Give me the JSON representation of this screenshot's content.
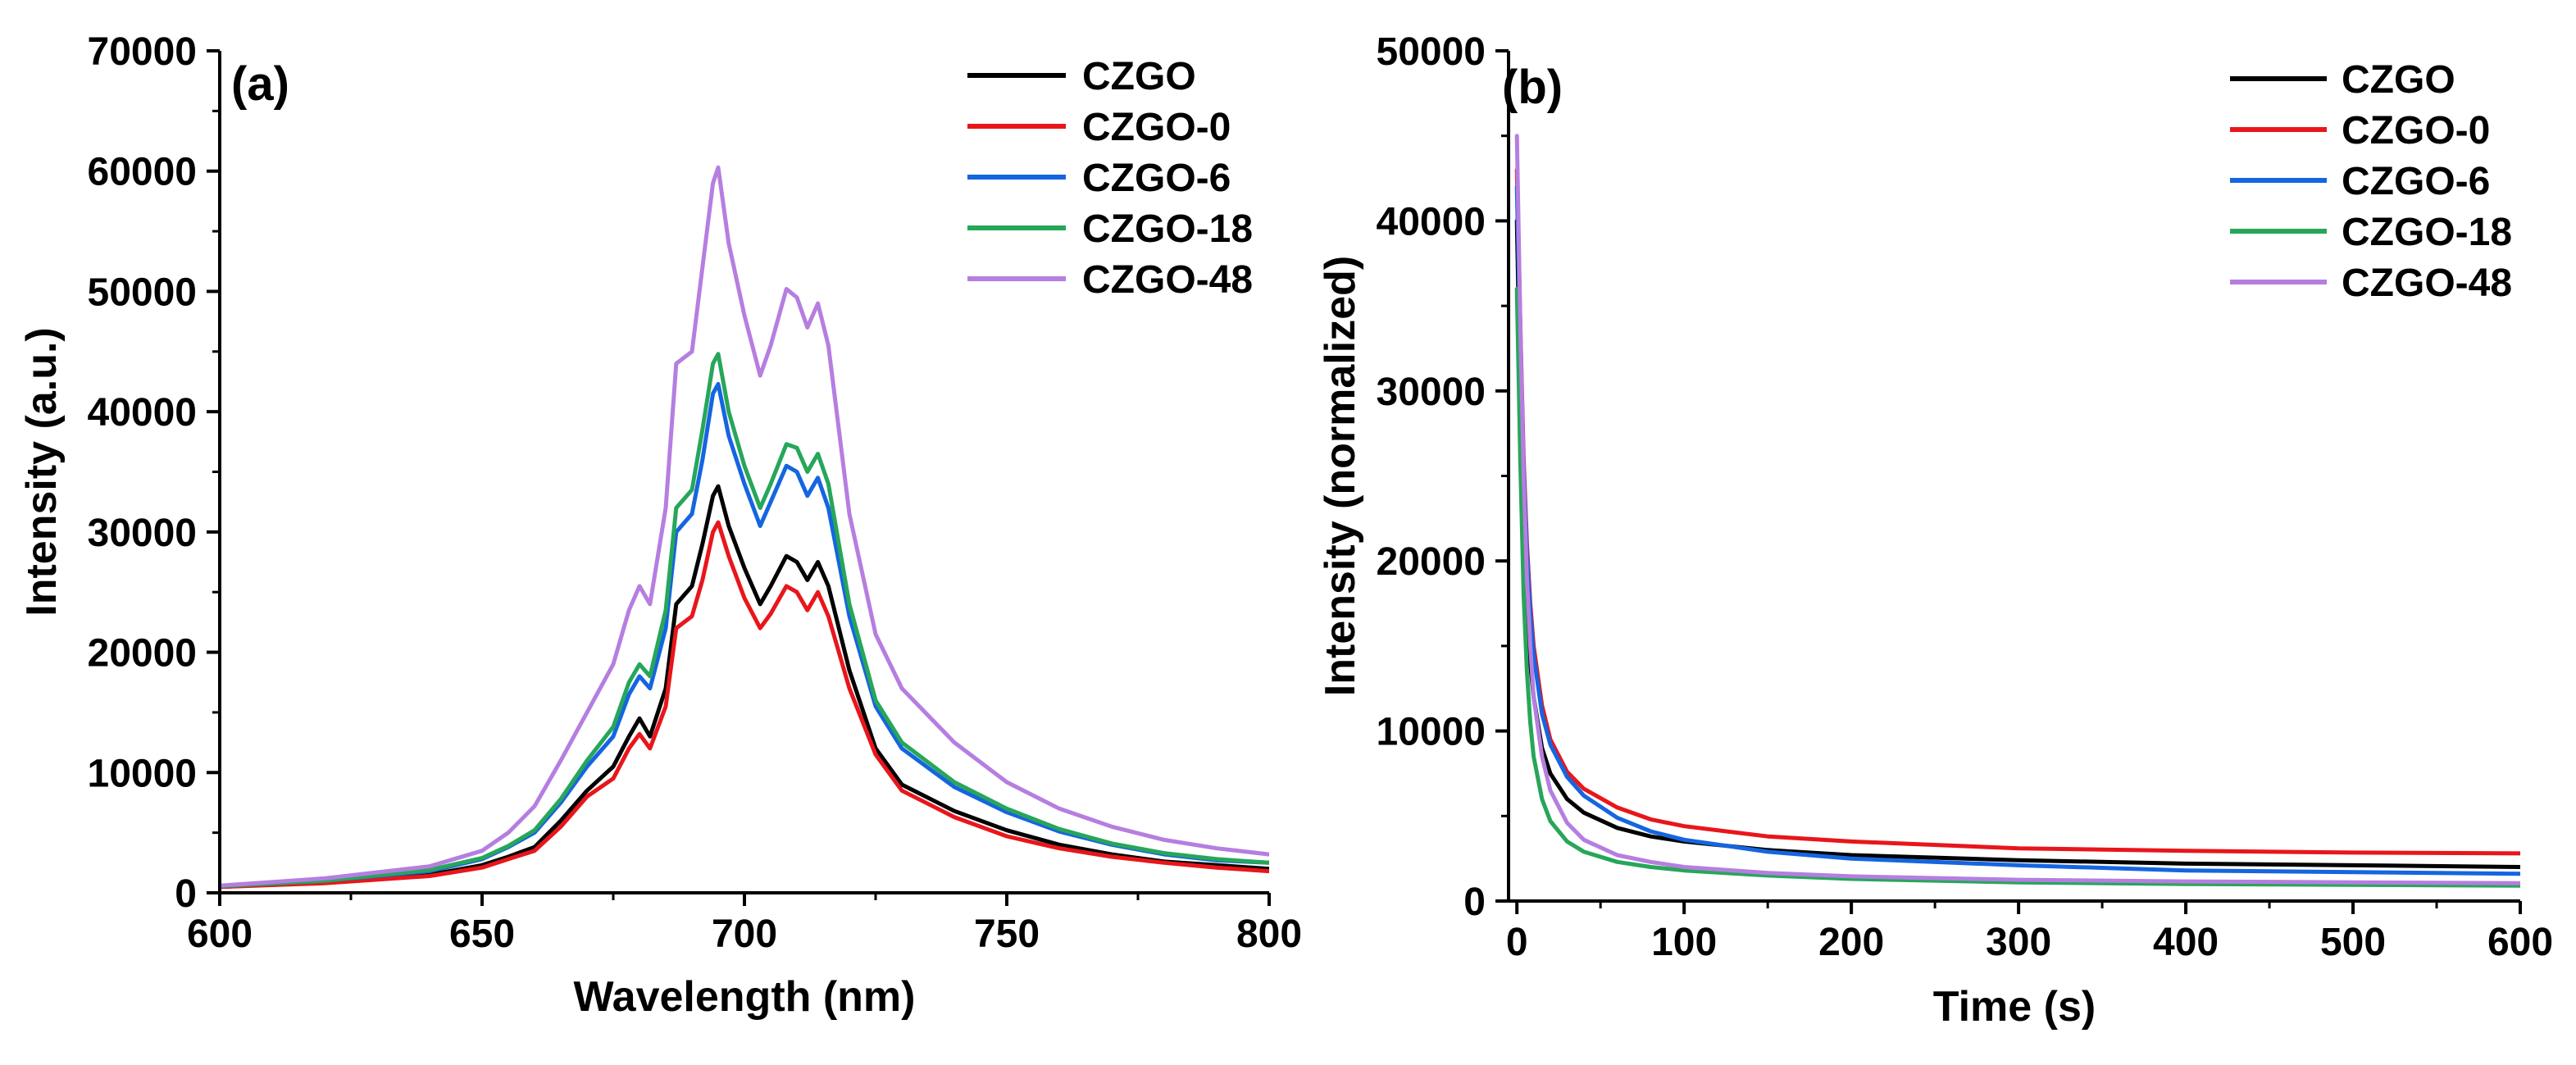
{
  "chart_data": [
    {
      "id": "a",
      "type": "line",
      "panel_label": "(a)",
      "xlabel": "Wavelength (nm)",
      "ylabel": "Intensity (a.u.)",
      "xlim": [
        600,
        800
      ],
      "ylim": [
        0,
        70000
      ],
      "xticks": [
        600,
        650,
        700,
        750,
        800
      ],
      "yticks": [
        0,
        10000,
        20000,
        30000,
        40000,
        50000,
        60000,
        70000
      ],
      "legend_position": "top-right",
      "series": [
        {
          "name": "CZGO",
          "color": "#000000",
          "x": [
            600,
            620,
            640,
            650,
            655,
            660,
            665,
            670,
            675,
            678,
            680,
            682,
            685,
            687,
            690,
            692,
            694,
            695,
            697,
            700,
            703,
            705,
            708,
            710,
            712,
            714,
            716,
            718,
            720,
            725,
            730,
            740,
            750,
            760,
            770,
            780,
            790,
            800
          ],
          "y": [
            500,
            900,
            1500,
            2300,
            3000,
            3800,
            6000,
            8500,
            10500,
            13000,
            14500,
            13000,
            17000,
            24000,
            25500,
            29000,
            33000,
            33800,
            30500,
            27000,
            24000,
            25500,
            28000,
            27500,
            26000,
            27500,
            25500,
            22000,
            18500,
            12000,
            9000,
            6800,
            5200,
            4000,
            3200,
            2600,
            2300,
            2000
          ]
        },
        {
          "name": "CZGO-0",
          "color": "#e8161b",
          "x": [
            600,
            620,
            640,
            650,
            655,
            660,
            665,
            670,
            675,
            678,
            680,
            682,
            685,
            687,
            690,
            692,
            694,
            695,
            697,
            700,
            703,
            705,
            708,
            710,
            712,
            714,
            716,
            718,
            720,
            725,
            730,
            740,
            750,
            760,
            770,
            780,
            790,
            800
          ],
          "y": [
            500,
            800,
            1400,
            2100,
            2800,
            3500,
            5500,
            8000,
            9500,
            12000,
            13200,
            12000,
            15500,
            22000,
            23000,
            26000,
            30000,
            30800,
            28000,
            24500,
            22000,
            23200,
            25500,
            25000,
            23500,
            25000,
            23000,
            20000,
            17000,
            11500,
            8500,
            6300,
            4700,
            3700,
            3000,
            2500,
            2100,
            1800
          ]
        },
        {
          "name": "CZGO-6",
          "color": "#1565e0",
          "x": [
            600,
            620,
            640,
            650,
            655,
            660,
            665,
            670,
            675,
            678,
            680,
            682,
            685,
            687,
            690,
            692,
            694,
            695,
            697,
            700,
            703,
            705,
            708,
            710,
            712,
            714,
            716,
            718,
            720,
            725,
            730,
            740,
            750,
            760,
            770,
            780,
            790,
            800
          ],
          "y": [
            550,
            1000,
            1800,
            2800,
            3800,
            5000,
            7500,
            10500,
            13000,
            16500,
            18000,
            17000,
            22000,
            30000,
            31500,
            36000,
            41500,
            42300,
            38000,
            34000,
            30500,
            32500,
            35500,
            35000,
            33000,
            34500,
            32000,
            27500,
            23000,
            15500,
            12000,
            8800,
            6700,
            5100,
            4000,
            3200,
            2700,
            2500
          ]
        },
        {
          "name": "CZGO-18",
          "color": "#27a65a",
          "x": [
            600,
            620,
            640,
            650,
            655,
            660,
            665,
            670,
            675,
            678,
            680,
            682,
            685,
            687,
            690,
            692,
            694,
            695,
            697,
            700,
            703,
            705,
            708,
            710,
            712,
            714,
            716,
            718,
            720,
            725,
            730,
            740,
            750,
            760,
            770,
            780,
            790,
            800
          ],
          "y": [
            550,
            1000,
            1900,
            2900,
            3900,
            5200,
            7800,
            11000,
            13800,
            17500,
            19000,
            18000,
            23500,
            32000,
            33500,
            38500,
            44000,
            44800,
            40000,
            35500,
            32000,
            34000,
            37300,
            37000,
            35000,
            36500,
            34000,
            29000,
            24000,
            16000,
            12500,
            9200,
            7000,
            5300,
            4100,
            3300,
            2800,
            2500
          ]
        },
        {
          "name": "CZGO-48",
          "color": "#b57ee0",
          "x": [
            600,
            620,
            640,
            650,
            655,
            660,
            665,
            670,
            675,
            678,
            680,
            682,
            685,
            687,
            690,
            692,
            694,
            695,
            697,
            700,
            703,
            705,
            708,
            710,
            712,
            714,
            716,
            718,
            720,
            725,
            730,
            740,
            750,
            760,
            770,
            780,
            790,
            800
          ],
          "y": [
            600,
            1200,
            2200,
            3500,
            5000,
            7200,
            11000,
            15000,
            19000,
            23500,
            25500,
            24000,
            32000,
            44000,
            45000,
            52000,
            59000,
            60300,
            54000,
            48000,
            43000,
            45500,
            50200,
            49500,
            47000,
            49000,
            45500,
            38500,
            31500,
            21500,
            17000,
            12500,
            9200,
            7000,
            5500,
            4400,
            3700,
            3200
          ]
        }
      ]
    },
    {
      "id": "b",
      "type": "line",
      "panel_label": "(b)",
      "xlabel": "Time (s)",
      "ylabel": "Intensity (normalized)",
      "xlim": [
        -5,
        600
      ],
      "ylim": [
        0,
        50000
      ],
      "xticks": [
        0,
        100,
        200,
        300,
        400,
        500,
        600
      ],
      "yticks": [
        0,
        10000,
        20000,
        30000,
        40000,
        50000
      ],
      "legend_position": "top-right",
      "series": [
        {
          "name": "CZGO",
          "color": "#000000",
          "x": [
            0,
            2,
            4,
            6,
            8,
            10,
            15,
            20,
            30,
            40,
            60,
            80,
            100,
            150,
            200,
            300,
            400,
            500,
            600
          ],
          "y": [
            40000,
            30000,
            22000,
            17000,
            14000,
            12000,
            9000,
            7500,
            6000,
            5200,
            4300,
            3800,
            3500,
            3000,
            2700,
            2400,
            2200,
            2100,
            2000
          ]
        },
        {
          "name": "CZGO-0",
          "color": "#e8161b",
          "x": [
            0,
            2,
            4,
            6,
            8,
            10,
            15,
            20,
            30,
            40,
            60,
            80,
            100,
            150,
            200,
            300,
            400,
            500,
            600
          ],
          "y": [
            43000,
            34000,
            26000,
            21000,
            17500,
            15000,
            11500,
            9500,
            7600,
            6600,
            5500,
            4800,
            4400,
            3800,
            3500,
            3100,
            2950,
            2850,
            2800
          ]
        },
        {
          "name": "CZGO-6",
          "color": "#1565e0",
          "x": [
            0,
            2,
            4,
            6,
            8,
            10,
            15,
            20,
            30,
            40,
            60,
            80,
            100,
            150,
            200,
            300,
            400,
            500,
            600
          ],
          "y": [
            42000,
            33000,
            25500,
            20500,
            17000,
            14500,
            11000,
            9200,
            7300,
            6200,
            4900,
            4100,
            3600,
            2900,
            2500,
            2100,
            1800,
            1700,
            1600
          ]
        },
        {
          "name": "CZGO-18",
          "color": "#27a65a",
          "x": [
            0,
            2,
            4,
            6,
            8,
            10,
            15,
            20,
            30,
            40,
            60,
            80,
            100,
            150,
            200,
            300,
            400,
            500,
            600
          ],
          "y": [
            36000,
            26000,
            18000,
            13500,
            10500,
            8500,
            6000,
            4700,
            3500,
            2900,
            2300,
            2000,
            1800,
            1500,
            1300,
            1100,
            1000,
            950,
            900
          ]
        },
        {
          "name": "CZGO-48",
          "color": "#b57ee0",
          "x": [
            0,
            2,
            4,
            6,
            8,
            10,
            15,
            20,
            30,
            40,
            60,
            80,
            100,
            150,
            200,
            300,
            400,
            500,
            600
          ],
          "y": [
            45000,
            34000,
            25000,
            19000,
            15000,
            12000,
            8500,
            6500,
            4600,
            3600,
            2700,
            2300,
            2000,
            1650,
            1450,
            1250,
            1150,
            1100,
            1050
          ]
        }
      ]
    }
  ]
}
